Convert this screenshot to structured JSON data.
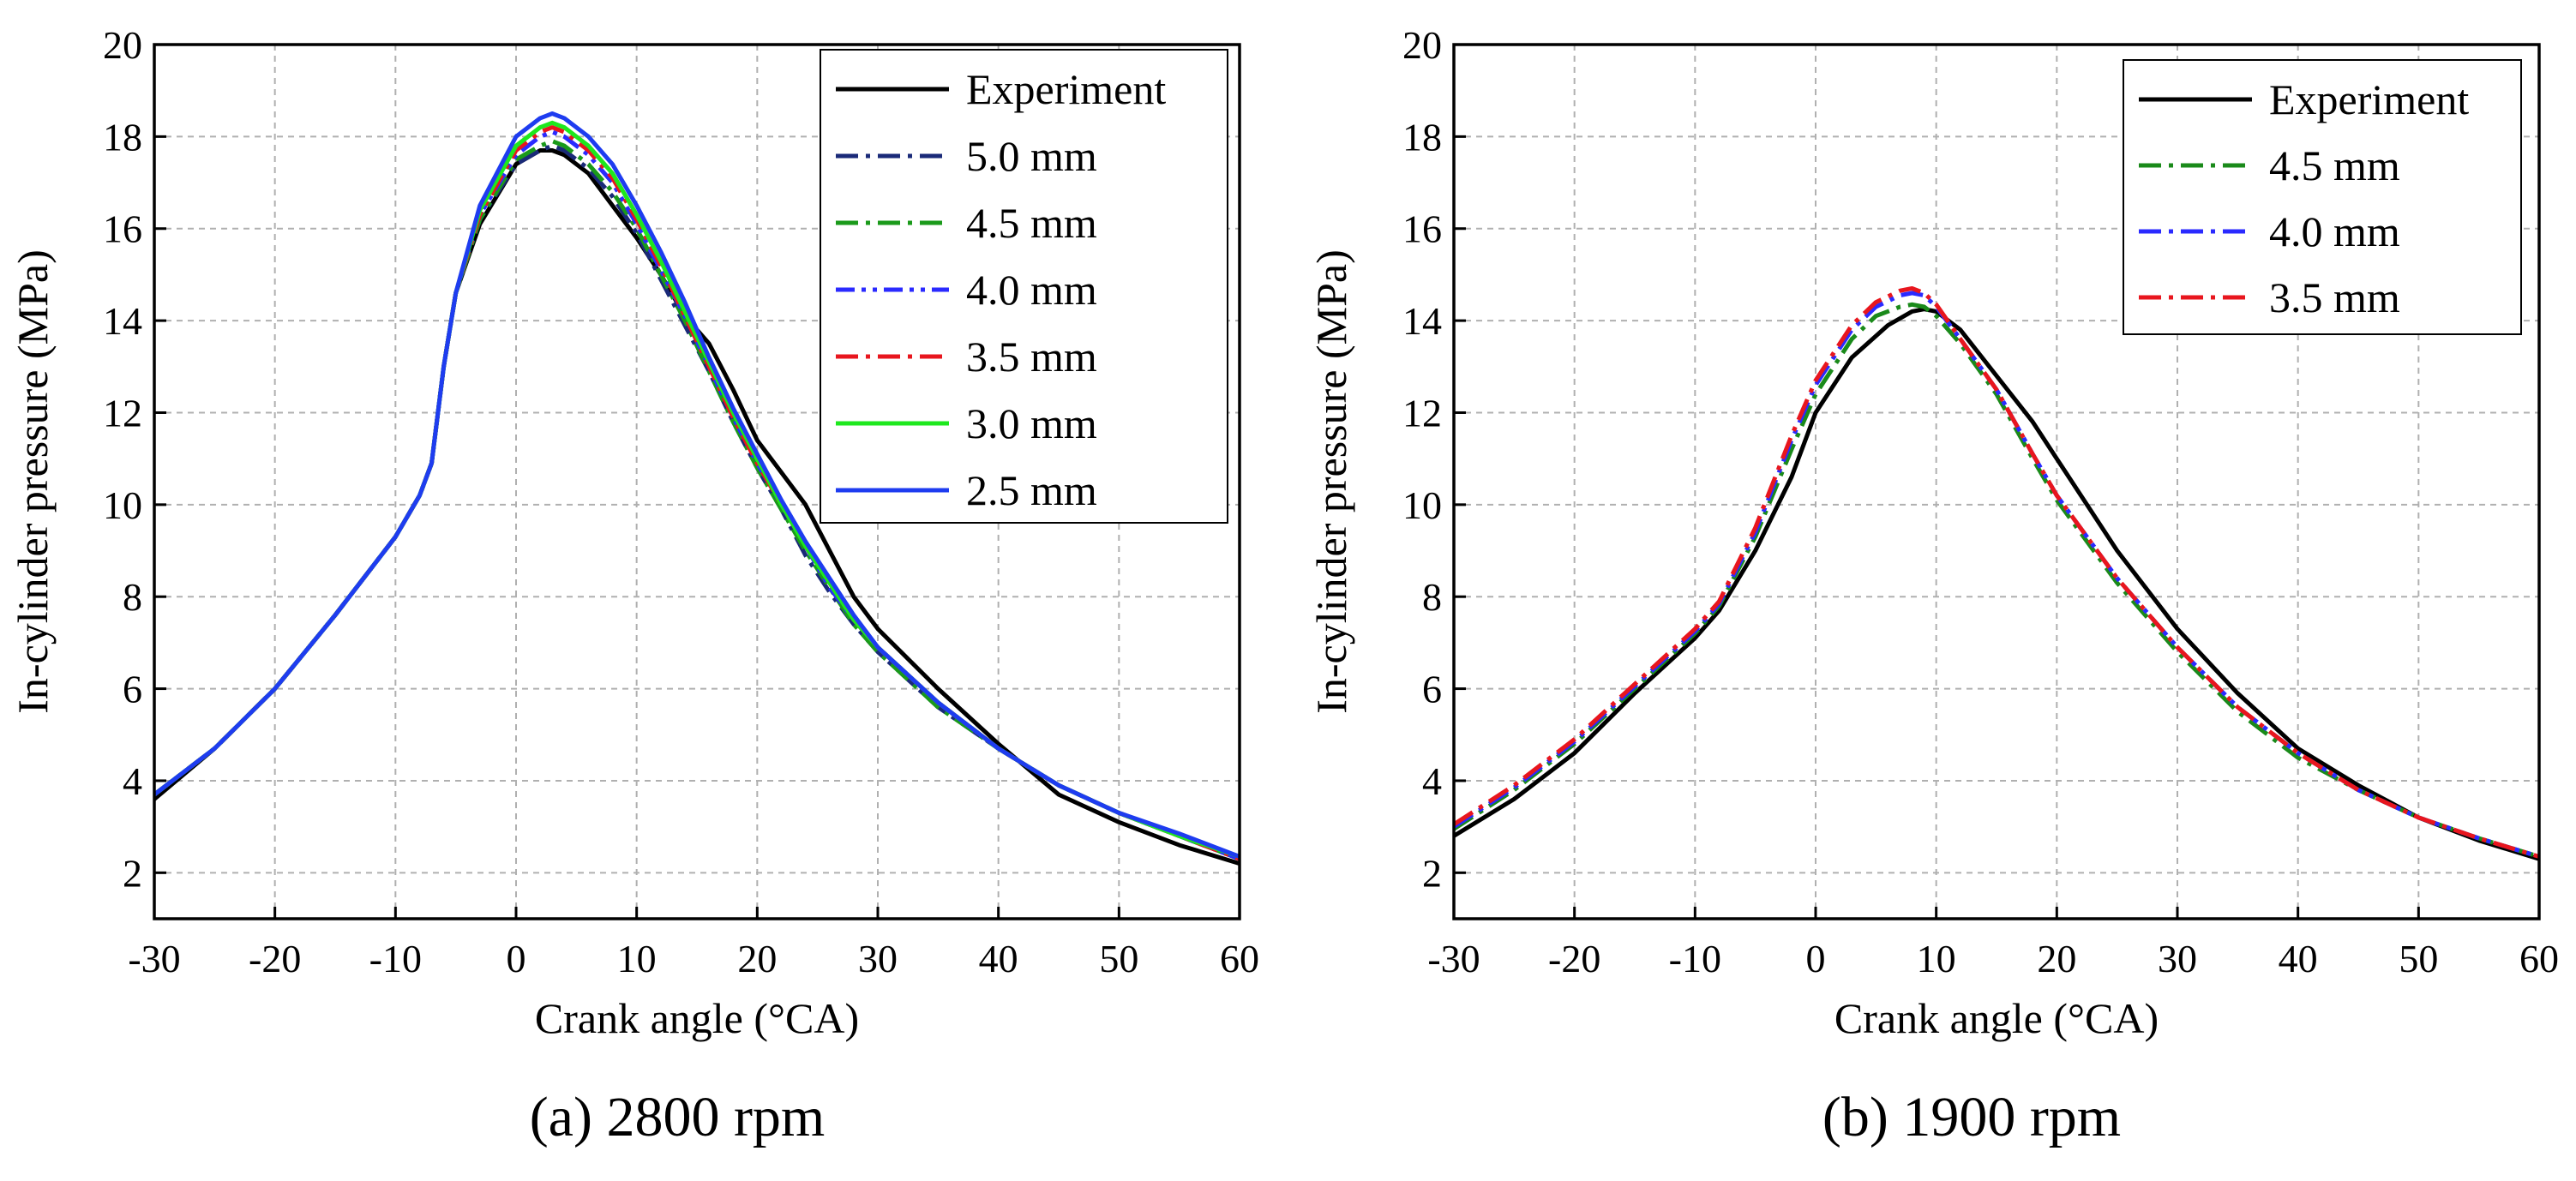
{
  "chart_data": [
    {
      "type": "line",
      "caption": "(a) 2800 rpm",
      "xlabel": "Crank angle (°CA)",
      "ylabel": "In-cylinder pressure (MPa)",
      "xlim": [
        -30,
        60
      ],
      "ylim": [
        1,
        20
      ],
      "xticks": [
        -30,
        -20,
        -10,
        0,
        10,
        20,
        30,
        40,
        50,
        60
      ],
      "yticks": [
        2,
        4,
        6,
        8,
        10,
        12,
        14,
        16,
        18,
        20
      ],
      "grid": true,
      "legend_position": "top-right",
      "series": [
        {
          "name": "Experiment",
          "color": "#000000",
          "dash": "solid",
          "x": [
            -30,
            -25,
            -20,
            -15,
            -10,
            -8,
            -7,
            -6,
            -5,
            -3,
            0,
            2,
            3,
            4,
            6,
            8,
            10,
            12,
            14,
            15,
            16,
            18,
            20,
            22,
            24,
            26,
            28,
            30,
            35,
            40,
            45,
            50,
            55,
            60
          ],
          "y": [
            3.6,
            4.7,
            6.0,
            7.6,
            9.3,
            10.2,
            10.9,
            13.0,
            14.6,
            16.1,
            17.4,
            17.7,
            17.7,
            17.6,
            17.2,
            16.5,
            15.8,
            15.0,
            14.1,
            13.8,
            13.5,
            12.5,
            11.4,
            10.7,
            10.0,
            9.0,
            8.0,
            7.3,
            6.0,
            4.8,
            3.7,
            3.1,
            2.6,
            2.2
          ]
        },
        {
          "name": "5.0 mm",
          "color": "#1a2a78",
          "dash": "dashdot",
          "x": [
            -30,
            -25,
            -20,
            -15,
            -10,
            -8,
            -7,
            -6,
            -5,
            -3,
            0,
            2,
            3,
            4,
            6,
            8,
            10,
            12,
            14,
            16,
            18,
            20,
            22,
            24,
            26,
            28,
            30,
            35,
            40,
            45,
            50,
            55,
            60
          ],
          "y": [
            3.7,
            4.7,
            6.0,
            7.6,
            9.3,
            10.2,
            10.9,
            13.0,
            14.6,
            16.2,
            17.4,
            17.7,
            17.8,
            17.7,
            17.3,
            16.7,
            15.9,
            14.9,
            13.9,
            12.9,
            11.8,
            10.8,
            9.9,
            8.9,
            8.1,
            7.4,
            6.8,
            5.6,
            4.7,
            3.9,
            3.3,
            2.8,
            2.3
          ]
        },
        {
          "name": "4.5 mm",
          "color": "#1a9a1a",
          "dash": "dashdot",
          "x": [
            -30,
            -25,
            -20,
            -15,
            -10,
            -8,
            -7,
            -6,
            -5,
            -3,
            0,
            2,
            3,
            4,
            6,
            8,
            10,
            12,
            14,
            16,
            18,
            20,
            22,
            24,
            26,
            28,
            30,
            35,
            40,
            45,
            50,
            55,
            60
          ],
          "y": [
            3.7,
            4.7,
            6.0,
            7.6,
            9.3,
            10.2,
            10.9,
            13.0,
            14.6,
            16.2,
            17.5,
            17.8,
            17.9,
            17.8,
            17.4,
            16.8,
            16.0,
            15.0,
            14.0,
            12.9,
            11.8,
            10.8,
            9.9,
            9.0,
            8.2,
            7.4,
            6.8,
            5.6,
            4.7,
            3.9,
            3.3,
            2.8,
            2.3
          ]
        },
        {
          "name": "4.0 mm",
          "color": "#2a2aff",
          "dash": "dashdotdot",
          "x": [
            -30,
            -25,
            -20,
            -15,
            -10,
            -8,
            -7,
            -6,
            -5,
            -3,
            0,
            2,
            3,
            4,
            6,
            8,
            10,
            12,
            14,
            16,
            18,
            20,
            22,
            24,
            26,
            28,
            30,
            35,
            40,
            45,
            50,
            55,
            60
          ],
          "y": [
            3.7,
            4.7,
            6.0,
            7.6,
            9.3,
            10.2,
            10.9,
            13.0,
            14.6,
            16.3,
            17.6,
            18.0,
            18.1,
            18.0,
            17.6,
            17.0,
            16.1,
            15.1,
            14.1,
            13.0,
            11.9,
            10.9,
            10.0,
            9.1,
            8.2,
            7.5,
            6.9,
            5.7,
            4.7,
            3.9,
            3.3,
            2.8,
            2.3
          ]
        },
        {
          "name": "3.5 mm",
          "color": "#e8161e",
          "dash": "dashdot",
          "x": [
            -30,
            -25,
            -20,
            -15,
            -10,
            -8,
            -7,
            -6,
            -5,
            -3,
            0,
            2,
            3,
            4,
            6,
            8,
            10,
            12,
            14,
            16,
            18,
            20,
            22,
            24,
            26,
            28,
            30,
            35,
            40,
            45,
            50,
            55,
            60
          ],
          "y": [
            3.7,
            4.7,
            6.0,
            7.6,
            9.3,
            10.2,
            10.9,
            13.0,
            14.6,
            16.3,
            17.7,
            18.1,
            18.2,
            18.1,
            17.7,
            17.1,
            16.2,
            15.2,
            14.1,
            13.0,
            11.9,
            10.9,
            10.0,
            9.1,
            8.3,
            7.5,
            6.9,
            5.7,
            4.7,
            3.9,
            3.3,
            2.8,
            2.3
          ]
        },
        {
          "name": "3.0 mm",
          "color": "#1ee81e",
          "dash": "solid",
          "x": [
            -30,
            -25,
            -20,
            -15,
            -10,
            -8,
            -7,
            -6,
            -5,
            -3,
            0,
            2,
            3,
            4,
            6,
            8,
            10,
            12,
            14,
            16,
            18,
            20,
            22,
            24,
            26,
            28,
            30,
            35,
            40,
            45,
            50,
            55,
            60
          ],
          "y": [
            3.7,
            4.7,
            6.0,
            7.6,
            9.3,
            10.2,
            10.9,
            13.0,
            14.6,
            16.4,
            17.8,
            18.2,
            18.3,
            18.2,
            17.8,
            17.2,
            16.3,
            15.3,
            14.2,
            13.1,
            12.0,
            11.0,
            10.0,
            9.1,
            8.3,
            7.5,
            6.9,
            5.7,
            4.7,
            3.9,
            3.3,
            2.8,
            2.35
          ]
        },
        {
          "name": "2.5 mm",
          "color": "#1e3cf0",
          "dash": "solid",
          "x": [
            -30,
            -25,
            -20,
            -15,
            -10,
            -8,
            -7,
            -6,
            -5,
            -3,
            0,
            2,
            3,
            4,
            6,
            8,
            10,
            12,
            14,
            16,
            18,
            20,
            22,
            24,
            26,
            28,
            30,
            35,
            40,
            45,
            50,
            55,
            60
          ],
          "y": [
            3.7,
            4.7,
            6.0,
            7.6,
            9.3,
            10.2,
            10.9,
            13.0,
            14.6,
            16.5,
            18.0,
            18.4,
            18.5,
            18.4,
            18.0,
            17.4,
            16.5,
            15.5,
            14.4,
            13.2,
            12.1,
            11.1,
            10.1,
            9.2,
            8.4,
            7.6,
            6.9,
            5.7,
            4.7,
            3.9,
            3.3,
            2.85,
            2.35
          ]
        }
      ]
    },
    {
      "type": "line",
      "caption": "(b) 1900 rpm",
      "xlabel": "Crank angle (°CA)",
      "ylabel": "In-cylinder pressure (MPa)",
      "xlim": [
        -30,
        60
      ],
      "ylim": [
        1,
        20
      ],
      "xticks": [
        -30,
        -20,
        -10,
        0,
        10,
        20,
        30,
        40,
        50,
        60
      ],
      "yticks": [
        2,
        4,
        6,
        8,
        10,
        12,
        14,
        16,
        18,
        20
      ],
      "grid": true,
      "legend_position": "top-right",
      "series": [
        {
          "name": "Experiment",
          "color": "#000000",
          "dash": "solid",
          "x": [
            -30,
            -25,
            -20,
            -15,
            -10,
            -8,
            -5,
            -2,
            0,
            3,
            6,
            8,
            9,
            10,
            12,
            15,
            18,
            20,
            25,
            30,
            35,
            40,
            45,
            50,
            55,
            60
          ],
          "y": [
            2.8,
            3.6,
            4.6,
            5.9,
            7.1,
            7.7,
            9.0,
            10.6,
            12.0,
            13.2,
            13.9,
            14.2,
            14.25,
            14.2,
            13.8,
            12.8,
            11.8,
            11.0,
            9.0,
            7.3,
            5.9,
            4.7,
            3.9,
            3.2,
            2.7,
            2.3
          ]
        },
        {
          "name": "4.5 mm",
          "color": "#1a8a1a",
          "dash": "dashdot",
          "x": [
            -30,
            -25,
            -20,
            -15,
            -10,
            -8,
            -5,
            -2,
            0,
            3,
            5,
            7,
            8,
            9,
            10,
            12,
            15,
            18,
            20,
            25,
            30,
            35,
            40,
            45,
            50,
            55,
            60
          ],
          "y": [
            2.95,
            3.8,
            4.8,
            6.0,
            7.2,
            7.8,
            9.3,
            11.2,
            12.4,
            13.6,
            14.1,
            14.3,
            14.35,
            14.3,
            14.1,
            13.5,
            12.4,
            11.0,
            10.1,
            8.3,
            6.8,
            5.5,
            4.5,
            3.8,
            3.2,
            2.75,
            2.35
          ]
        },
        {
          "name": "4.0 mm",
          "color": "#2a2aff",
          "dash": "dashdot",
          "x": [
            -30,
            -25,
            -20,
            -15,
            -10,
            -8,
            -5,
            -2,
            0,
            3,
            5,
            7,
            8,
            9,
            10,
            12,
            15,
            18,
            20,
            25,
            30,
            35,
            40,
            45,
            50,
            55,
            60
          ],
          "y": [
            3.0,
            3.85,
            4.85,
            6.05,
            7.25,
            7.85,
            9.4,
            11.4,
            12.6,
            13.8,
            14.3,
            14.55,
            14.6,
            14.55,
            14.3,
            13.6,
            12.5,
            11.1,
            10.2,
            8.4,
            6.9,
            5.6,
            4.6,
            3.8,
            3.2,
            2.75,
            2.35
          ]
        },
        {
          "name": "3.5 mm",
          "color": "#e8161e",
          "dash": "dashdot",
          "x": [
            -30,
            -25,
            -20,
            -15,
            -10,
            -8,
            -5,
            -2,
            0,
            3,
            5,
            7,
            8,
            9,
            10,
            12,
            15,
            18,
            20,
            25,
            30,
            35,
            40,
            45,
            50,
            55,
            60
          ],
          "y": [
            3.05,
            3.9,
            4.9,
            6.1,
            7.3,
            7.9,
            9.5,
            11.5,
            12.7,
            13.9,
            14.4,
            14.65,
            14.7,
            14.6,
            14.35,
            13.6,
            12.5,
            11.1,
            10.2,
            8.4,
            6.9,
            5.6,
            4.6,
            3.8,
            3.2,
            2.75,
            2.35
          ]
        }
      ]
    }
  ]
}
